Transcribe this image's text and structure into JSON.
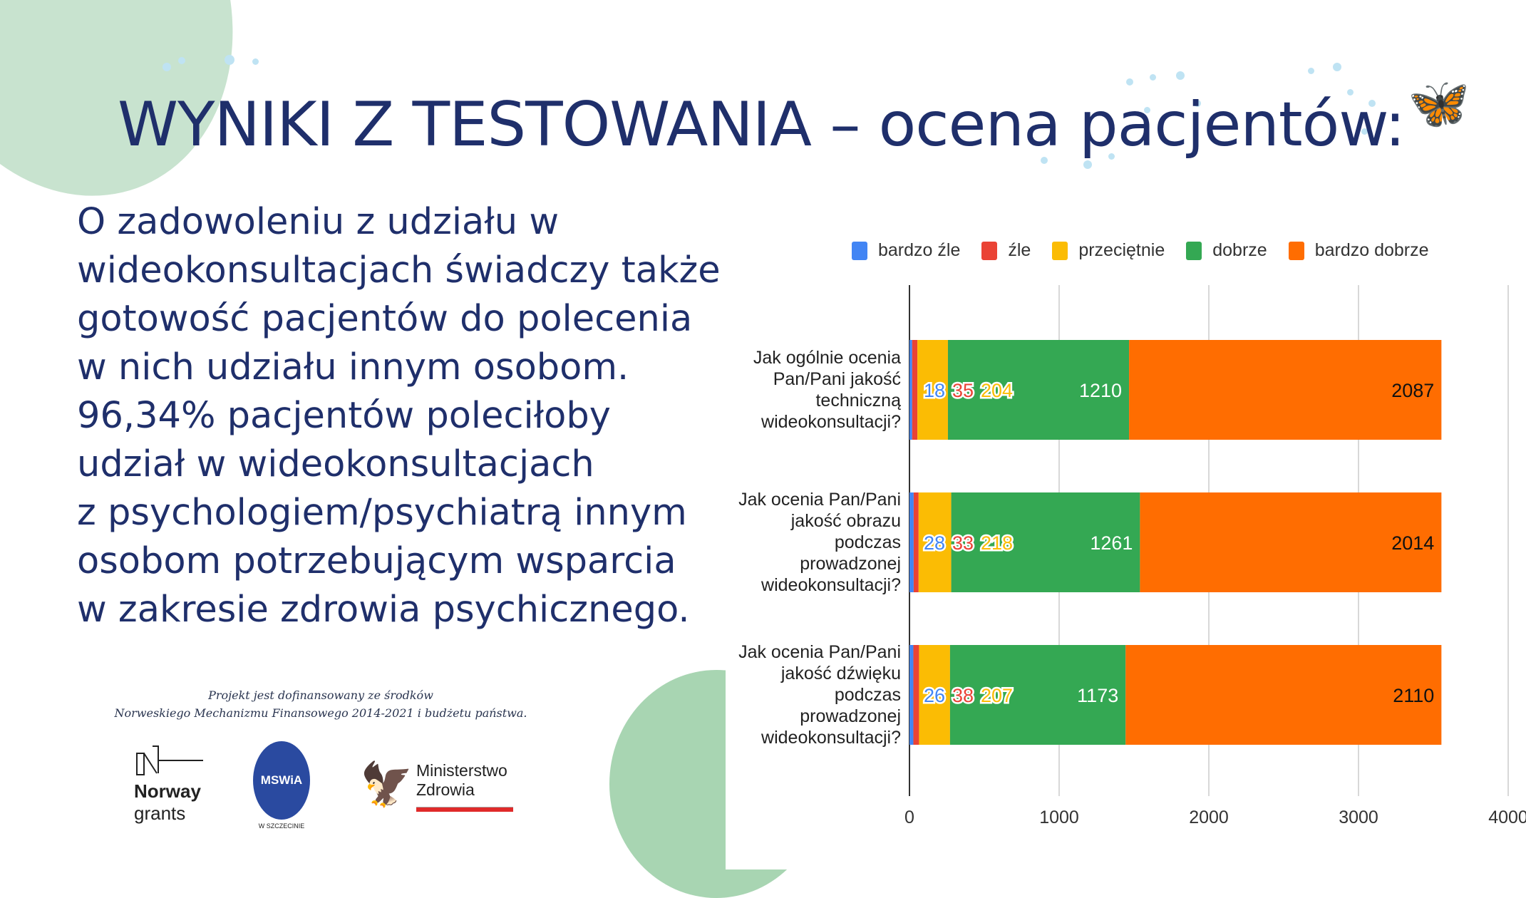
{
  "title": "WYNIKI Z TESTOWANIA – ocena pacjentów:",
  "body_lines": [
    "O zadowoleniu z udziału w",
    "wideokonsultacjach świadczy także",
    "gotowość pacjentów do polecenia",
    "w nich udziału innym osobom.",
    "96,34% pacjentów poleciłoby",
    "udział w wideokonsultacjach",
    "z psychologiem/psychiatrą innym",
    "osobom potrzebującym wsparcia",
    "w zakresie zdrowia psychicznego."
  ],
  "funding": {
    "line1": "Projekt jest dofinansowany ze środków",
    "line2": "Norweskiego Mechanizmu Finansowego 2014-2021 i budżetu państwa."
  },
  "logos": {
    "norway_1": "Norway",
    "norway_2": "grants",
    "mswia": "MSWiA",
    "mswia_sub": "W SZCZECINIE",
    "mz_1": "Ministerstwo",
    "mz_2": "Zdrowia"
  },
  "chart_data": {
    "type": "bar",
    "orientation": "horizontal",
    "stacked": true,
    "categories": [
      "Jak ogólnie ocenia Pan/Pani jakość techniczną wideokonsultacji?",
      "Jak ocenia Pan/Pani jakość obrazu podczas prowadzonej wideokonsultacji?",
      "Jak ocenia Pan/Pani jakość dźwięku podczas prowadzonej wideokonsultacji?"
    ],
    "category_lines": [
      [
        "Jak ogólnie ocenia",
        "Pan/Pani jakość",
        "techniczną",
        "wideokonsultacji?"
      ],
      [
        "Jak ocenia Pan/Pani",
        "jakość obrazu",
        "podczas",
        "prowadzonej",
        "wideokonsultacji?"
      ],
      [
        "Jak ocenia Pan/Pani",
        "jakość dźwięku",
        "podczas",
        "prowadzonej",
        "wideokonsultacji?"
      ]
    ],
    "series": [
      {
        "name": "bardzo źle",
        "color": "#4285f4",
        "values": [
          18,
          28,
          26
        ]
      },
      {
        "name": "źle",
        "color": "#ea4335",
        "values": [
          35,
          33,
          38
        ]
      },
      {
        "name": "przeciętnie",
        "color": "#fbbc04",
        "values": [
          204,
          218,
          207
        ]
      },
      {
        "name": "dobrze",
        "color": "#34a853",
        "values": [
          1210,
          1261,
          1173
        ]
      },
      {
        "name": "bardzo dobrze",
        "color": "#ff6d01",
        "values": [
          2087,
          2014,
          2110
        ]
      }
    ],
    "xlim": [
      0,
      4000
    ],
    "xticks": [
      "0",
      "1000",
      "2000",
      "3000",
      "4000"
    ],
    "legend": "top",
    "grid": true
  }
}
